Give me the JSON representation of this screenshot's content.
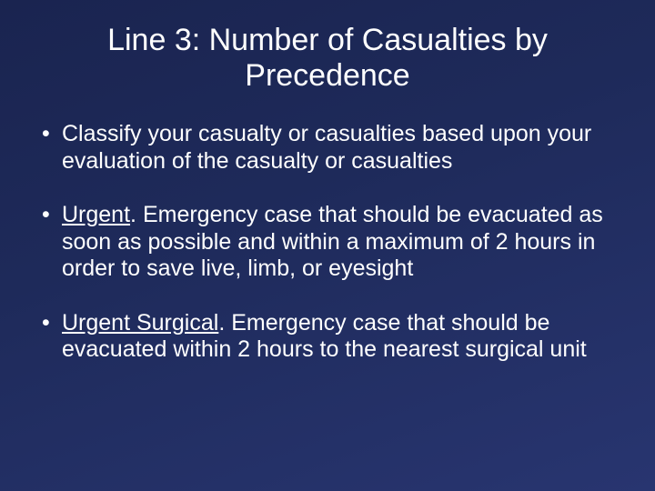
{
  "background_gradient": [
    "#1a2450",
    "#1e2a5a",
    "#283570"
  ],
  "text_color": "#ffffff",
  "title_fontsize": 34,
  "bullet_fontsize": 25,
  "title": "Line 3:  Number of Casualties by Precedence",
  "bullets": [
    {
      "prefix": "",
      "underlined": "",
      "rest": "Classify your casualty or casualties based upon your evaluation of the casualty or casualties"
    },
    {
      "prefix": "",
      "underlined": "Urgent",
      "rest": ". Emergency case that should be evacuated as soon as possible and within a maximum of 2 hours in order to save live, limb, or eyesight"
    },
    {
      "prefix": "",
      "underlined": "Urgent Surgical",
      "rest": ". Emergency case that should be evacuated within 2 hours to the nearest surgical unit"
    }
  ]
}
